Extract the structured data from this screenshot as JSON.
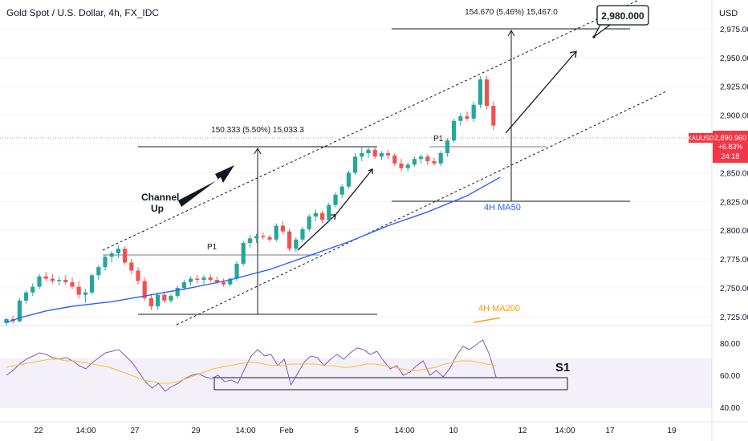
{
  "header": {
    "symbol_title": "Gold Spot / U.S. Dollar, 4h, FX_IDC",
    "currency": "USD"
  },
  "price_badge": {
    "symbol": "XAUUSD",
    "price": "2,890.960",
    "change": "+6.83%",
    "countdown": "24:18"
  },
  "colors": {
    "up": "#26a69a",
    "down": "#ef5350",
    "ma50": "#2962ff",
    "ma200": "#ff9800",
    "rsi": "#7e57c2",
    "rsi_ma": "#fbc02d",
    "badge": "#f23645"
  },
  "annotations": {
    "target": "2,980.000",
    "measure_top": "154.670 (5.46%) 15,467.0",
    "measure_mid": "150.333 (5.50%) 15,033.3",
    "channel_label": "Channel\nUp",
    "p1_left": "P1",
    "p1_right": "P1",
    "ma50_label": "4H MA50",
    "ma200_label": "4H MA200",
    "s1_label": "S1"
  },
  "chart_data": {
    "type": "candlestick",
    "price_axis": {
      "range": [
        2718,
        3000
      ],
      "ticks": [
        "2,975.000",
        "2,950.000",
        "2,925.000",
        "2,900.000",
        "2,875.000",
        "2,850.000",
        "2,825.000",
        "2,800.000",
        "2,775.000",
        "2,750.000",
        "2,725.000"
      ]
    },
    "rsi_axis": {
      "range": [
        33,
        88
      ],
      "ticks": [
        "80.00",
        "60.00",
        "40.00"
      ]
    },
    "time_axis": {
      "ticks": [
        "22",
        "14:00",
        "27",
        "29",
        "14:00",
        "Feb",
        "5",
        "14:00",
        "10",
        "12",
        "14:00",
        "17",
        "19"
      ]
    },
    "candles": [
      [
        2719.5,
        2723.5,
        2717.0,
        2723.0
      ],
      [
        2723.0,
        2726.0,
        2719.0,
        2721.0
      ],
      [
        2721.0,
        2741.0,
        2720.0,
        2739.0
      ],
      [
        2739.0,
        2748.0,
        2736.0,
        2746.0
      ],
      [
        2746.0,
        2754.0,
        2743.0,
        2751.0
      ],
      [
        2751.0,
        2762.0,
        2749.0,
        2760.0
      ],
      [
        2760.0,
        2764.0,
        2756.0,
        2758.0
      ],
      [
        2758.0,
        2762.0,
        2754.0,
        2756.0
      ],
      [
        2756.0,
        2760.0,
        2752.0,
        2757.0
      ],
      [
        2757.0,
        2761.0,
        2753.0,
        2755.0
      ],
      [
        2755.0,
        2759.0,
        2749.0,
        2751.0
      ],
      [
        2751.0,
        2756.0,
        2741.0,
        2744.0
      ],
      [
        2744.0,
        2749.0,
        2737.0,
        2746.0
      ],
      [
        2746.0,
        2762.0,
        2744.0,
        2761.0
      ],
      [
        2761.0,
        2770.0,
        2757.0,
        2768.0
      ],
      [
        2768.0,
        2779.0,
        2765.0,
        2777.0
      ],
      [
        2777.0,
        2782.0,
        2772.0,
        2780.0
      ],
      [
        2780.0,
        2787.0,
        2776.0,
        2784.0
      ],
      [
        2784.0,
        2786.0,
        2770.0,
        2772.0
      ],
      [
        2772.0,
        2775.0,
        2762.0,
        2765.0
      ],
      [
        2765.0,
        2768.0,
        2753.0,
        2756.0
      ],
      [
        2756.0,
        2759.0,
        2739.0,
        2741.0
      ],
      [
        2741.0,
        2745.0,
        2731.0,
        2734.0
      ],
      [
        2734.0,
        2746.0,
        2731.0,
        2744.0
      ],
      [
        2744.0,
        2747.0,
        2737.0,
        2739.0
      ],
      [
        2739.0,
        2745.0,
        2737.0,
        2743.0
      ],
      [
        2743.0,
        2752.0,
        2741.0,
        2750.0
      ],
      [
        2750.0,
        2757.0,
        2748.0,
        2755.0
      ],
      [
        2755.0,
        2760.0,
        2752.0,
        2758.0
      ],
      [
        2758.0,
        2761.0,
        2754.0,
        2757.0
      ],
      [
        2757.0,
        2761.0,
        2753.0,
        2759.0
      ],
      [
        2759.0,
        2762.0,
        2755.0,
        2757.0
      ],
      [
        2757.0,
        2760.0,
        2753.0,
        2755.0
      ],
      [
        2755.0,
        2758.0,
        2751.0,
        2753.0
      ],
      [
        2753.0,
        2759.0,
        2751.0,
        2758.0
      ],
      [
        2758.0,
        2773.0,
        2756.0,
        2771.0
      ],
      [
        2771.0,
        2791.0,
        2769.0,
        2789.0
      ],
      [
        2789.0,
        2796.0,
        2785.0,
        2793.0
      ],
      [
        2793.0,
        2797.0,
        2789.0,
        2795.0
      ],
      [
        2795.0,
        2798.0,
        2792.0,
        2794.0
      ],
      [
        2794.0,
        2796.0,
        2790.0,
        2792.0
      ],
      [
        2792.0,
        2806.0,
        2790.0,
        2804.0
      ],
      [
        2804.0,
        2808.0,
        2797.0,
        2799.0
      ],
      [
        2799.0,
        2801.0,
        2782.0,
        2784.0
      ],
      [
        2784.0,
        2794.0,
        2781.0,
        2792.0
      ],
      [
        2792.0,
        2803.0,
        2790.0,
        2801.0
      ],
      [
        2801.0,
        2814.0,
        2799.0,
        2812.0
      ],
      [
        2812.0,
        2818.0,
        2808.0,
        2815.0
      ],
      [
        2815.0,
        2817.0,
        2806.0,
        2809.0
      ],
      [
        2809.0,
        2824.0,
        2807.0,
        2822.0
      ],
      [
        2822.0,
        2833.0,
        2820.0,
        2831.0
      ],
      [
        2831.0,
        2840.0,
        2828.0,
        2838.0
      ],
      [
        2838.0,
        2852.0,
        2836.0,
        2850.0
      ],
      [
        2850.0,
        2867.0,
        2848.0,
        2864.0
      ],
      [
        2864.0,
        2872.0,
        2860.0,
        2867.0
      ],
      [
        2867.0,
        2873.0,
        2863.0,
        2870.0
      ],
      [
        2870.0,
        2872.0,
        2862.0,
        2864.0
      ],
      [
        2864.0,
        2869.0,
        2861.0,
        2867.0
      ],
      [
        2867.0,
        2870.0,
        2862.0,
        2865.0
      ],
      [
        2865.0,
        2867.0,
        2856.0,
        2858.0
      ],
      [
        2858.0,
        2862.0,
        2851.0,
        2854.0
      ],
      [
        2854.0,
        2859.0,
        2851.0,
        2857.0
      ],
      [
        2857.0,
        2864.0,
        2855.0,
        2862.0
      ],
      [
        2862.0,
        2866.0,
        2858.0,
        2864.0
      ],
      [
        2864.0,
        2866.0,
        2857.0,
        2860.0
      ],
      [
        2860.0,
        2863.0,
        2856.0,
        2858.0
      ],
      [
        2858.0,
        2869.0,
        2856.0,
        2867.0
      ],
      [
        2867.0,
        2880.0,
        2864.0,
        2878.0
      ],
      [
        2878.0,
        2897.0,
        2876.0,
        2895.0
      ],
      [
        2895.0,
        2902.0,
        2891.0,
        2899.0
      ],
      [
        2899.0,
        2903.0,
        2895.0,
        2897.0
      ],
      [
        2897.0,
        2912.0,
        2894.0,
        2909.0
      ],
      [
        2909.0,
        2934.0,
        2906.0,
        2931.0
      ],
      [
        2931.0,
        2934.0,
        2905.0,
        2908.0
      ],
      [
        2908.0,
        2912.0,
        2887.0,
        2891.0
      ]
    ],
    "ma50": [
      [
        0,
        2720
      ],
      [
        2,
        2724
      ],
      [
        6,
        2730
      ],
      [
        10,
        2734
      ],
      [
        16,
        2738
      ],
      [
        22,
        2744
      ],
      [
        28,
        2750
      ],
      [
        34,
        2757
      ],
      [
        40,
        2766
      ],
      [
        46,
        2778
      ],
      [
        52,
        2790
      ],
      [
        58,
        2804
      ],
      [
        64,
        2816
      ],
      [
        70,
        2830
      ],
      [
        75,
        2846
      ]
    ],
    "ma200": [
      [
        71,
        2720
      ],
      [
        75,
        2724
      ]
    ],
    "rsi": [
      60,
      63,
      67,
      70,
      72,
      74,
      73,
      71,
      70,
      71,
      69,
      66,
      64,
      68,
      71,
      74,
      75,
      76,
      72,
      68,
      62,
      56,
      52,
      55,
      50,
      53,
      55,
      58,
      60,
      61,
      59,
      58,
      60,
      56,
      57,
      55,
      64,
      72,
      76,
      72,
      73,
      66,
      70,
      54,
      61,
      68,
      72,
      71,
      66,
      70,
      73,
      70,
      74,
      77,
      76,
      73,
      75,
      69,
      64,
      66,
      60,
      62,
      66,
      69,
      60,
      63,
      59,
      64,
      72,
      78,
      76,
      79,
      82,
      73,
      59
    ],
    "rsi_ma": [
      65,
      66,
      67,
      68,
      69,
      70,
      70,
      69,
      69,
      68,
      67,
      66,
      65,
      63,
      61,
      59,
      57,
      56,
      55,
      55,
      56,
      58,
      60,
      62,
      64,
      65,
      66,
      67,
      68,
      68,
      67,
      66,
      66,
      67,
      67,
      67,
      67,
      66,
      66,
      65,
      65,
      66,
      67,
      67,
      66,
      65,
      64,
      63,
      63,
      64,
      65,
      67,
      68,
      69,
      69,
      68,
      67,
      66
    ]
  }
}
